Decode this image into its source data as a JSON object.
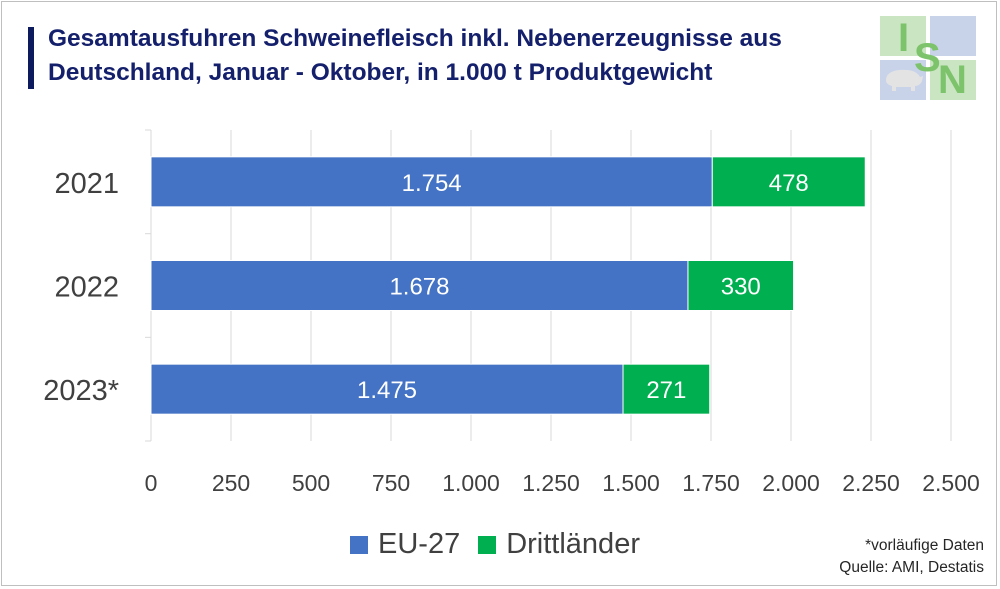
{
  "title": {
    "line1": "Gesamtausfuhren Schweinefleisch inkl. Nebenerzeugnisse aus",
    "line2": "Deutschland, Januar - Oktober, in 1.000 t Produktgewicht"
  },
  "logo": {
    "letters": [
      "I",
      "S",
      "N"
    ],
    "colors": {
      "light_green": "#c9e5c1",
      "light_blue": "#c8d3ea",
      "green": "#7cc36b"
    }
  },
  "chart_data": {
    "type": "bar",
    "orientation": "horizontal",
    "stacked": true,
    "categories": [
      "2021",
      "2022",
      "2023*"
    ],
    "series": [
      {
        "name": "EU-27",
        "color": "#4472c4",
        "values": [
          1754,
          1678,
          1475
        ],
        "labels": [
          "1.754",
          "1.678",
          "1.475"
        ]
      },
      {
        "name": "Drittländer",
        "color": "#00b050",
        "values": [
          478,
          330,
          271
        ],
        "labels": [
          "478",
          "330",
          "271"
        ]
      }
    ],
    "xlim": [
      0,
      2500
    ],
    "xticks": [
      0,
      250,
      500,
      750,
      1000,
      1250,
      1500,
      1750,
      2000,
      2250,
      2500
    ],
    "xtick_labels": [
      "0",
      "250",
      "500",
      "750",
      "1.000",
      "1.250",
      "1.500",
      "1.750",
      "2.000",
      "2.250",
      "2.500"
    ],
    "grid": "vertical",
    "legend_position": "bottom"
  },
  "legend": {
    "items": [
      {
        "label": "EU-27",
        "color": "#4472c4"
      },
      {
        "label": "Drittländer",
        "color": "#00b050"
      }
    ]
  },
  "footnote": {
    "line1": "*vorläufige Daten",
    "line2": "Quelle: AMI, Destatis"
  },
  "colors": {
    "title": "#14206b",
    "title_bar": "#0e1a5e",
    "grid": "#d9d9d9",
    "text": "#404040"
  }
}
